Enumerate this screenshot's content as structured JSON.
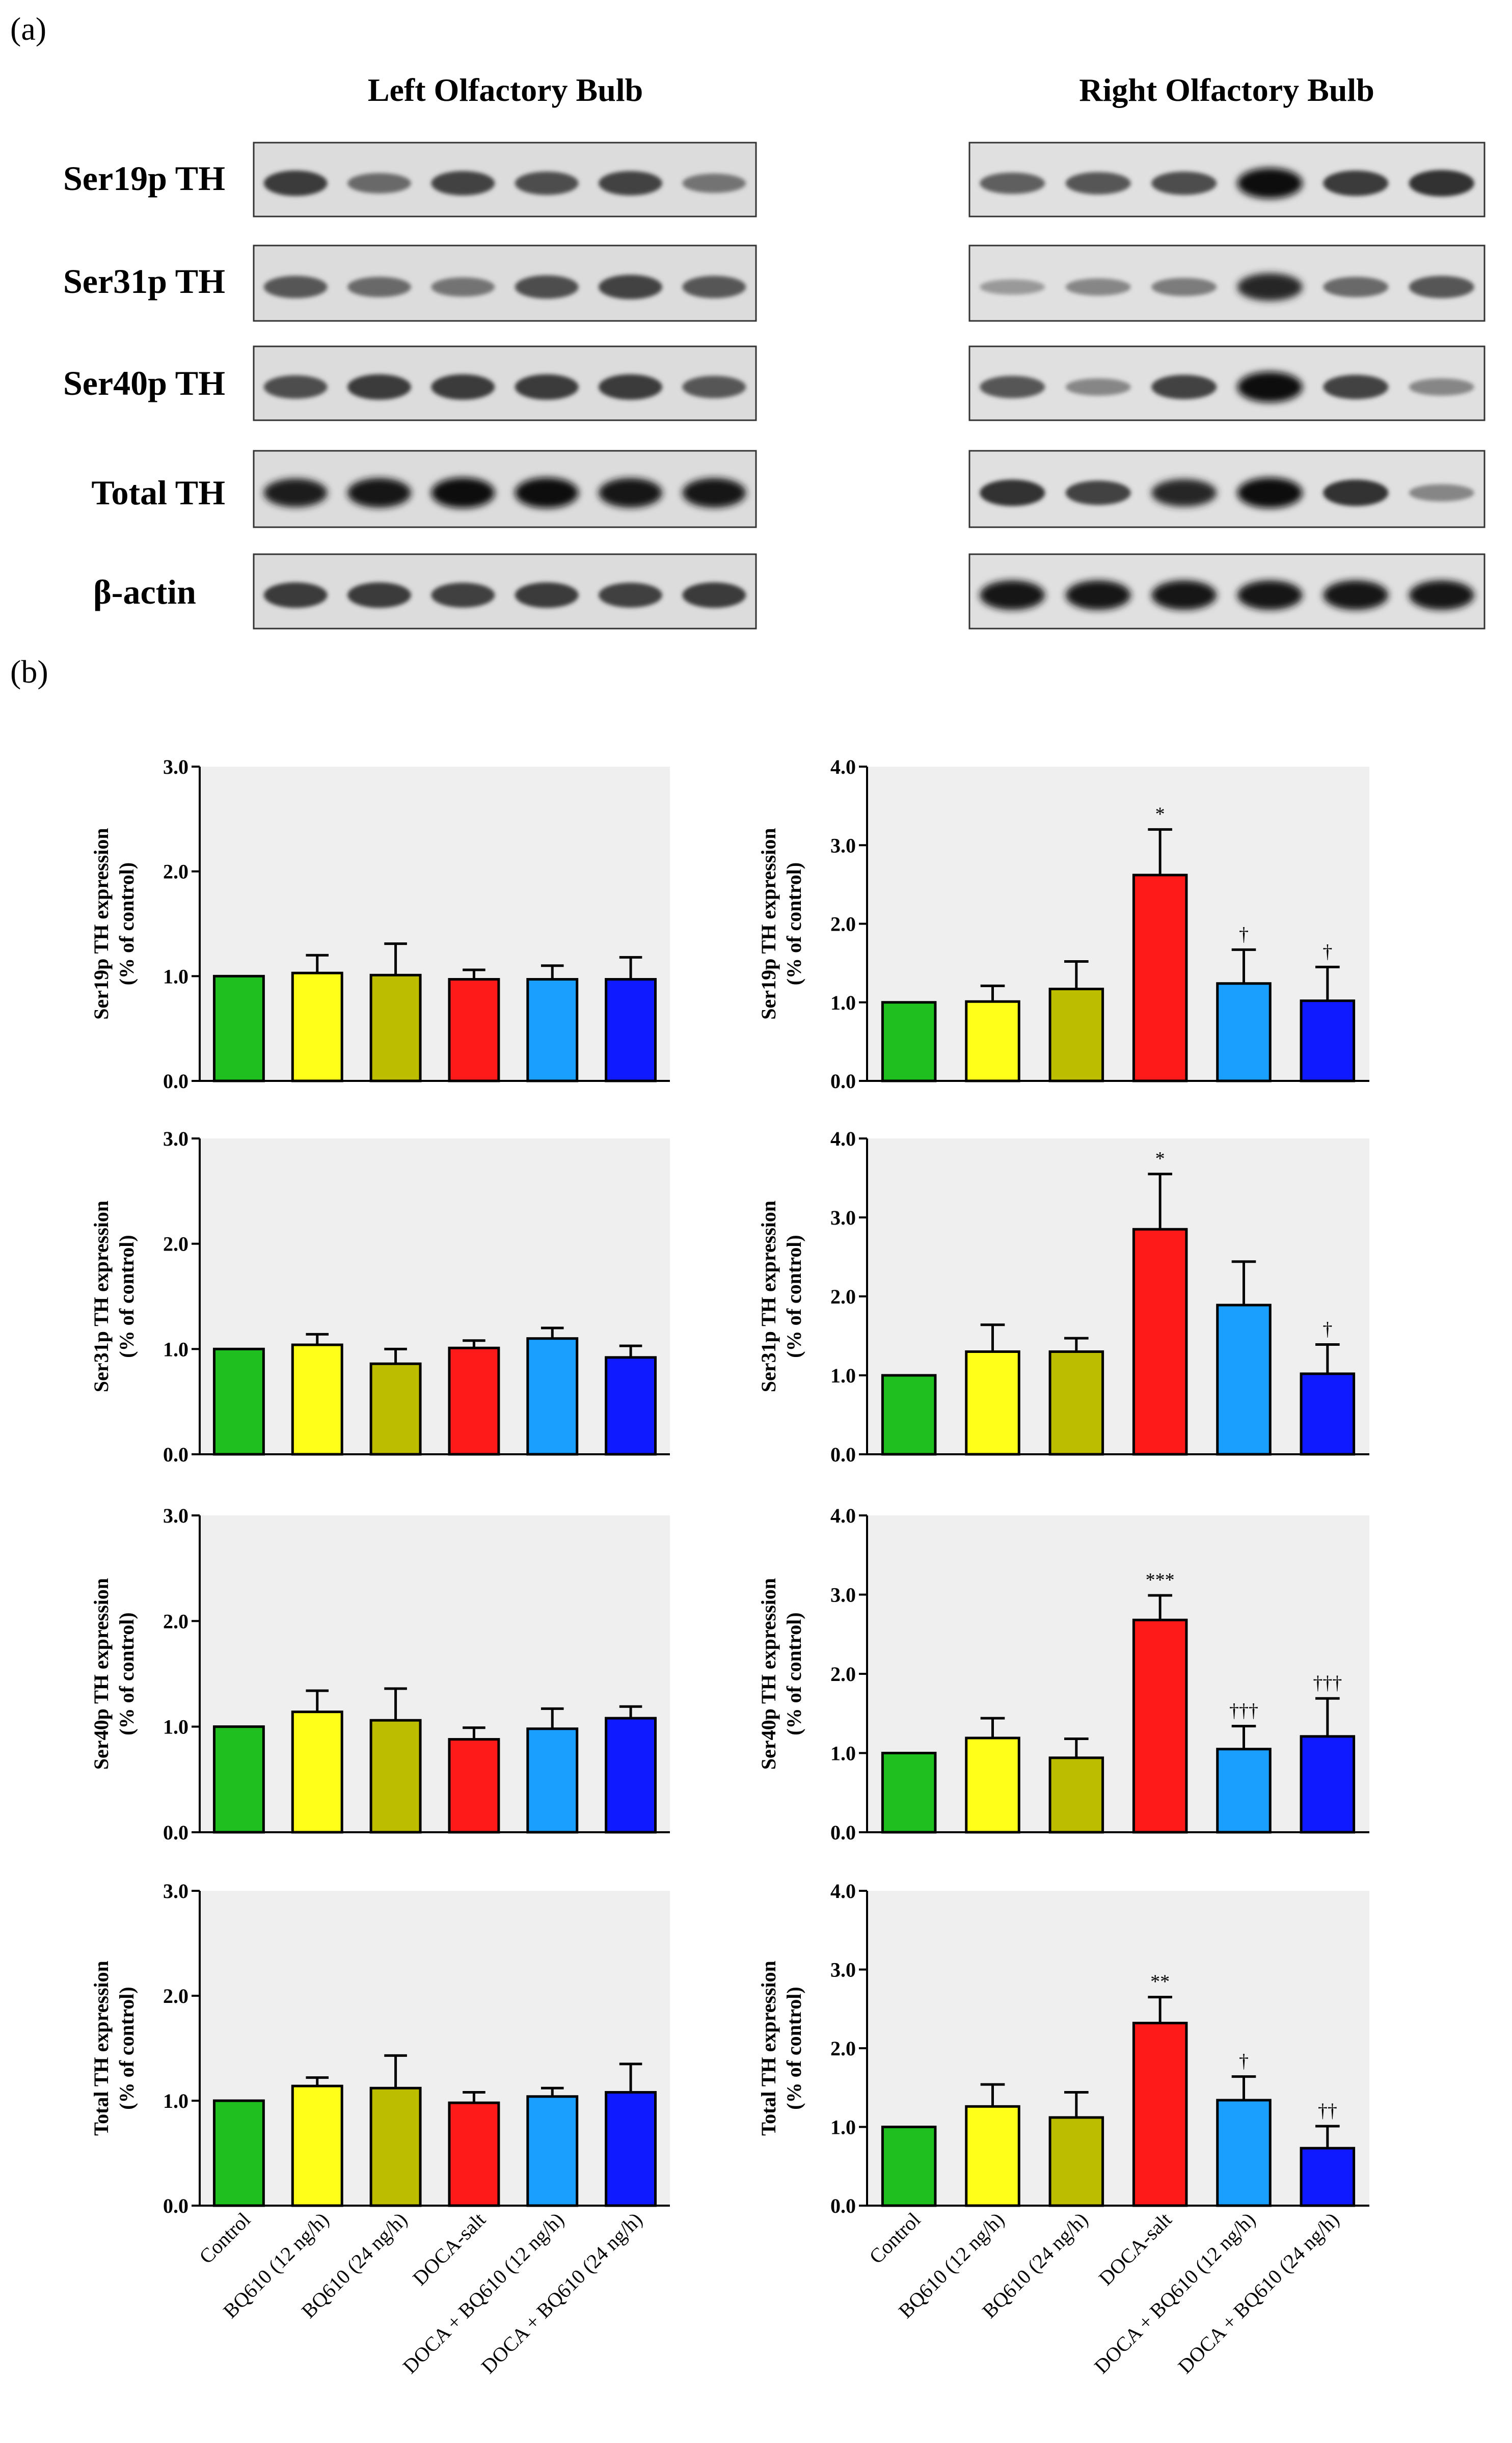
{
  "panels": {
    "a": "(a)",
    "b": "(b)"
  },
  "blot": {
    "left_title": "Left Olfactory Bulb",
    "right_title": "Right Olfactory Bulb",
    "rows": [
      "Ser19p TH",
      "Ser31p TH",
      "Ser40p TH",
      "Total TH",
      "β-actin"
    ]
  },
  "colors": {
    "Control": "#1fbf1f",
    "BQ610 (12 ng/h)": "#ffff1a",
    "BQ610 (24 ng/h)": "#bdbd00",
    "DOCA-salt": "#ff1a1a",
    "DOCA + BQ610 (12 ng/h)": "#1a9fff",
    "DOCA + BQ610 (24 ng/h)": "#0f1aff",
    "plot_bg": "#efefef"
  },
  "chart_data": [
    {
      "type": "bar",
      "panel": "left",
      "title": "",
      "ylabel_line1": "Ser19p TH expression",
      "ylabel_line2": "(% of control)",
      "xlabel": "",
      "ylim": [
        0,
        3.0
      ],
      "yticks": [
        "0.0",
        "1.0",
        "2.0",
        "3.0"
      ],
      "categories": [
        "Control",
        "BQ610 (12 ng/h)",
        "BQ610 (24 ng/h)",
        "DOCA-salt",
        "DOCA + BQ610 (12 ng/h)",
        "DOCA + BQ610 (24 ng/h)"
      ],
      "values": [
        1.0,
        1.03,
        1.01,
        0.97,
        0.97,
        0.97
      ],
      "errors": [
        0,
        0.17,
        0.3,
        0.09,
        0.13,
        0.21
      ],
      "annotations": [
        "",
        "",
        "",
        "",
        "",
        ""
      ]
    },
    {
      "type": "bar",
      "panel": "right",
      "title": "",
      "ylabel_line1": "Ser19p TH expression",
      "ylabel_line2": "(% of control)",
      "xlabel": "",
      "ylim": [
        0,
        4.0
      ],
      "yticks": [
        "0.0",
        "1.0",
        "2.0",
        "3.0",
        "4.0"
      ],
      "categories": [
        "Control",
        "BQ610 (12 ng/h)",
        "BQ610 (24 ng/h)",
        "DOCA-salt",
        "DOCA + BQ610 (12 ng/h)",
        "DOCA + BQ610 (24 ng/h)"
      ],
      "values": [
        1.0,
        1.01,
        1.17,
        2.62,
        1.24,
        1.02
      ],
      "errors": [
        0,
        0.2,
        0.35,
        0.58,
        0.43,
        0.43
      ],
      "annotations": [
        "",
        "",
        "",
        "*",
        "†",
        "†"
      ]
    },
    {
      "type": "bar",
      "panel": "left",
      "title": "",
      "ylabel_line1": "Ser31p TH expression",
      "ylabel_line2": "(% of control)",
      "xlabel": "",
      "ylim": [
        0,
        3.0
      ],
      "yticks": [
        "0.0",
        "1.0",
        "2.0",
        "3.0"
      ],
      "categories": [
        "Control",
        "BQ610 (12 ng/h)",
        "BQ610 (24 ng/h)",
        "DOCA-salt",
        "DOCA + BQ610 (12 ng/h)",
        "DOCA + BQ610 (24 ng/h)"
      ],
      "values": [
        1.0,
        1.04,
        0.86,
        1.01,
        1.1,
        0.92
      ],
      "errors": [
        0,
        0.1,
        0.14,
        0.07,
        0.1,
        0.11
      ],
      "annotations": [
        "",
        "",
        "",
        "",
        "",
        ""
      ]
    },
    {
      "type": "bar",
      "panel": "right",
      "title": "",
      "ylabel_line1": "Ser31p TH expression",
      "ylabel_line2": "(% of control)",
      "xlabel": "",
      "ylim": [
        0,
        4.0
      ],
      "yticks": [
        "0.0",
        "1.0",
        "2.0",
        "3.0",
        "4.0"
      ],
      "categories": [
        "Control",
        "BQ610 (12 ng/h)",
        "BQ610 (24 ng/h)",
        "DOCA-salt",
        "DOCA + BQ610 (12 ng/h)",
        "DOCA + BQ610 (24 ng/h)"
      ],
      "values": [
        1.0,
        1.3,
        1.3,
        2.85,
        1.89,
        1.02
      ],
      "errors": [
        0,
        0.34,
        0.17,
        0.7,
        0.55,
        0.37
      ],
      "annotations": [
        "",
        "",
        "",
        "*",
        "",
        "†"
      ]
    },
    {
      "type": "bar",
      "panel": "left",
      "title": "",
      "ylabel_line1": "Ser40p TH expression",
      "ylabel_line2": "(% of control)",
      "xlabel": "",
      "ylim": [
        0,
        3.0
      ],
      "yticks": [
        "0.0",
        "1.0",
        "2.0",
        "3.0"
      ],
      "categories": [
        "Control",
        "BQ610 (12 ng/h)",
        "BQ610 (24 ng/h)",
        "DOCA-salt",
        "DOCA + BQ610 (12 ng/h)",
        "DOCA + BQ610 (24 ng/h)"
      ],
      "values": [
        1.0,
        1.14,
        1.06,
        0.88,
        0.98,
        1.08
      ],
      "errors": [
        0,
        0.2,
        0.3,
        0.11,
        0.19,
        0.11
      ],
      "annotations": [
        "",
        "",
        "",
        "",
        "",
        ""
      ]
    },
    {
      "type": "bar",
      "panel": "right",
      "title": "",
      "ylabel_line1": "Ser40p TH expression",
      "ylabel_line2": "(% of control)",
      "xlabel": "",
      "ylim": [
        0,
        4.0
      ],
      "yticks": [
        "0.0",
        "1.0",
        "2.0",
        "3.0",
        "4.0"
      ],
      "categories": [
        "Control",
        "BQ610 (12 ng/h)",
        "BQ610 (24 ng/h)",
        "DOCA-salt",
        "DOCA + BQ610 (12 ng/h)",
        "DOCA + BQ610 (24 ng/h)"
      ],
      "values": [
        1.0,
        1.19,
        0.94,
        2.68,
        1.05,
        1.21
      ],
      "errors": [
        0,
        0.25,
        0.24,
        0.31,
        0.29,
        0.48
      ],
      "annotations": [
        "",
        "",
        "",
        "***",
        "†††",
        "†††"
      ]
    },
    {
      "type": "bar",
      "panel": "left",
      "title": "",
      "ylabel_line1": "Total TH expression",
      "ylabel_line2": "(% of control)",
      "xlabel": "",
      "ylim": [
        0,
        3.0
      ],
      "yticks": [
        "0.0",
        "1.0",
        "2.0",
        "3.0"
      ],
      "categories": [
        "Control",
        "BQ610 (12 ng/h)",
        "BQ610 (24 ng/h)",
        "DOCA-salt",
        "DOCA + BQ610 (12 ng/h)",
        "DOCA + BQ610 (24 ng/h)"
      ],
      "values": [
        1.0,
        1.14,
        1.12,
        0.98,
        1.04,
        1.08
      ],
      "errors": [
        0,
        0.08,
        0.31,
        0.1,
        0.08,
        0.27
      ],
      "annotations": [
        "",
        "",
        "",
        "",
        "",
        ""
      ]
    },
    {
      "type": "bar",
      "panel": "right",
      "title": "",
      "ylabel_line1": "Total TH expression",
      "ylabel_line2": "(% of control)",
      "xlabel": "",
      "ylim": [
        0,
        4.0
      ],
      "yticks": [
        "0.0",
        "1.0",
        "2.0",
        "3.0",
        "4.0"
      ],
      "categories": [
        "Control",
        "BQ610 (12 ng/h)",
        "BQ610 (24 ng/h)",
        "DOCA-salt",
        "DOCA + BQ610 (12 ng/h)",
        "DOCA + BQ610 (24 ng/h)"
      ],
      "values": [
        1.0,
        1.26,
        1.12,
        2.32,
        1.34,
        0.73
      ],
      "errors": [
        0,
        0.28,
        0.32,
        0.33,
        0.3,
        0.28
      ],
      "annotations": [
        "",
        "",
        "",
        "**",
        "†",
        "††"
      ]
    }
  ]
}
